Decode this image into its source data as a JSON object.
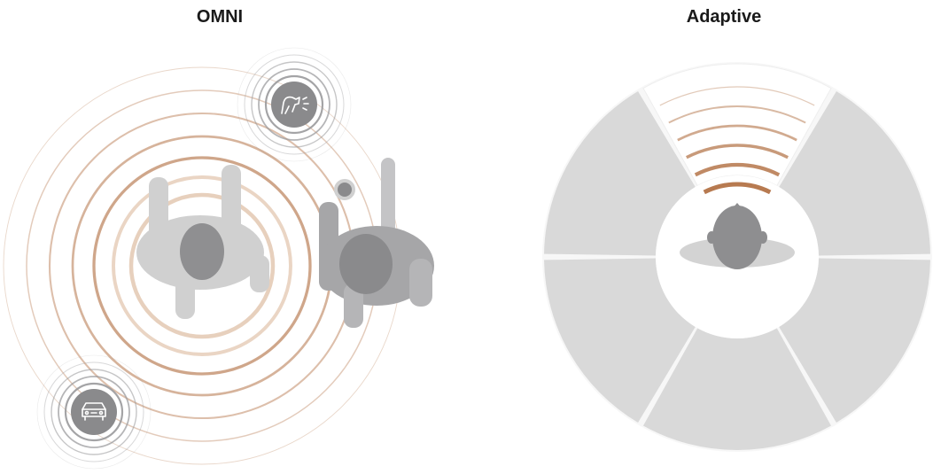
{
  "panels": {
    "omni": {
      "title": "OMNI",
      "sound_sources": [
        {
          "icon": "dog-barking-icon"
        },
        {
          "icon": "car-icon"
        }
      ]
    },
    "adaptive": {
      "title": "Adaptive",
      "sectors": 6,
      "focus_direction": "front"
    }
  },
  "colors": {
    "accent_ring": "#b77a50",
    "ring_light": "#e3c8b2",
    "source_gray": "#8a8a8c",
    "person_light": "#cfcfcf",
    "person_dark": "#8e8e90",
    "sector_fill": "#d9d9d9",
    "background": "#ffffff"
  }
}
